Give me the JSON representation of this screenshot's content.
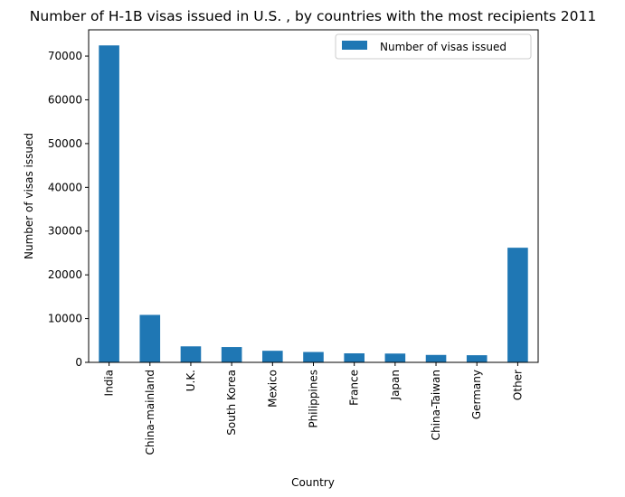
{
  "chart_data": {
    "type": "bar",
    "title": "Number of H-1B visas issued in U.S. , by countries with the most recipients 2011",
    "xlabel": "Country",
    "ylabel": "Number of visas issued",
    "categories": [
      "India",
      "China-mainland",
      "U.K.",
      "South Korea",
      "Mexico",
      "Philippines",
      "France",
      "Japan",
      "China-Taiwan",
      "Germany",
      "Other"
    ],
    "series": [
      {
        "name": "Number of visas issued",
        "color": "#1f77b4",
        "values": [
          72438,
          10849,
          3660,
          3501,
          2647,
          2369,
          2063,
          2012,
          1698,
          1632,
          26200
        ]
      }
    ],
    "ylim": [
      0,
      76000
    ],
    "yticks": [
      0,
      10000,
      20000,
      30000,
      40000,
      50000,
      60000,
      70000
    ],
    "ytick_labels": [
      "0",
      "10000",
      "20000",
      "30000",
      "40000",
      "50000",
      "60000",
      "70000"
    ],
    "grid": false,
    "legend": "top-right"
  }
}
